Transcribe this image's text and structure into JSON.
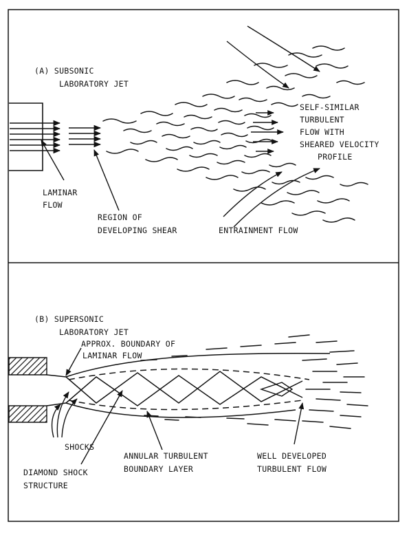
{
  "panel_a": {
    "title_line1": "(A)  SUBSONIC",
    "title_line2": "LABORATORY JET",
    "label_laminar_1": "LAMINAR",
    "label_laminar_2": "FLOW",
    "label_shear_1": "REGION OF",
    "label_shear_2": "DEVELOPING SHEAR",
    "label_entrain": "ENTRAINMENT FLOW",
    "label_self_1": "SELF-SIMILAR",
    "label_self_2": "TURBULENT",
    "label_self_3": "FLOW WITH",
    "label_self_4": "SHEARED VELOCITY",
    "label_self_5": "PROFILE"
  },
  "panel_b": {
    "title_line1": "(B)  SUPERSONIC",
    "title_line2": "LABORATORY JET",
    "label_boundary_1": "APPROX. BOUNDARY OF",
    "label_boundary_2": "LAMINAR FLOW",
    "label_shocks": "SHOCKS",
    "label_diamond_1": "DIAMOND SHOCK",
    "label_diamond_2": "STRUCTURE",
    "label_annular_1": "ANNULAR TURBULENT",
    "label_annular_2": "BOUNDARY LAYER",
    "label_well_1": "WELL DEVELOPED",
    "label_well_2": "TURBULENT FLOW"
  },
  "colors": {
    "ink": "#111111",
    "background": "#ffffff"
  }
}
